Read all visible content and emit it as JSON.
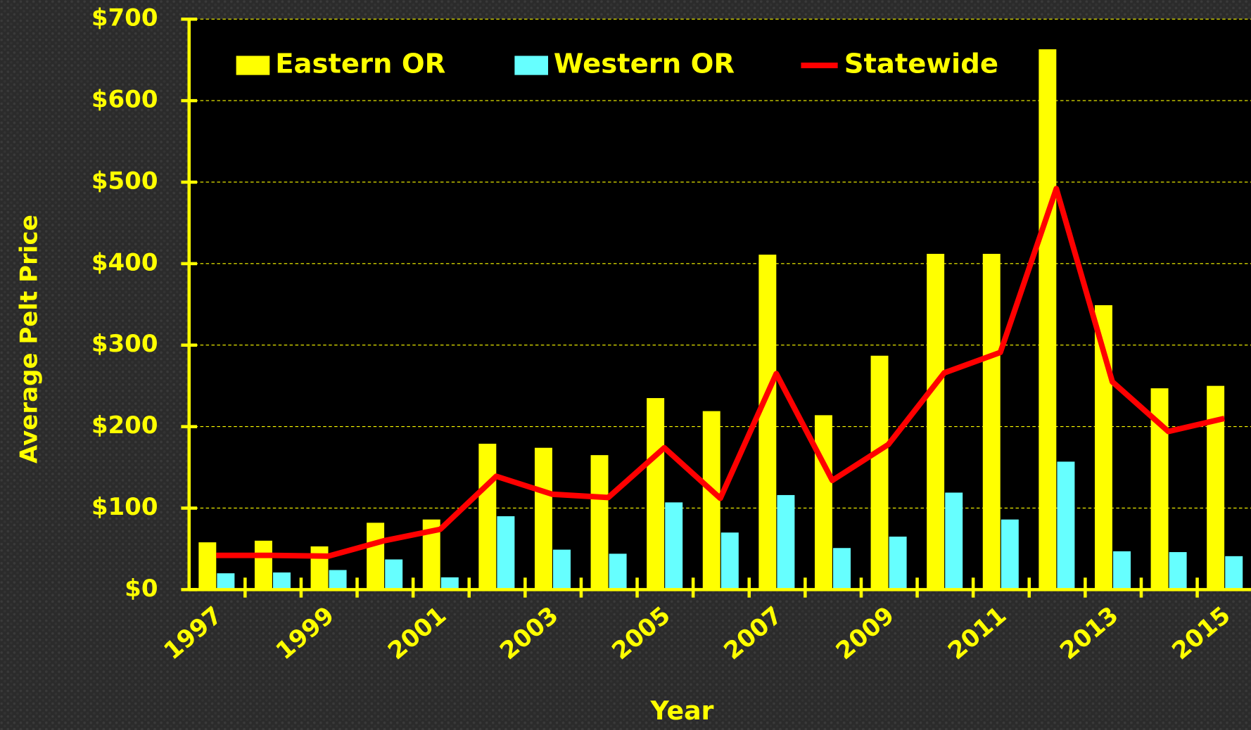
{
  "chart_data": {
    "type": "bar_line",
    "x_label": "Year",
    "y_label": "Average Pelt Price",
    "categories": [
      "1997",
      null,
      "1999",
      null,
      "2001",
      null,
      "2003",
      null,
      "2005",
      null,
      "2007",
      null,
      "2009",
      null,
      "2011",
      null,
      "2013",
      null,
      "2015"
    ],
    "series": [
      {
        "name": "Eastern OR",
        "type": "bar",
        "color": "#ffff00",
        "values": [
          58,
          60,
          53,
          82,
          86,
          179,
          174,
          165,
          235,
          219,
          411,
          214,
          287,
          412,
          412,
          663,
          349,
          247,
          250
        ]
      },
      {
        "name": "Western OR",
        "type": "bar",
        "color": "#66ffff",
        "values": [
          20,
          21,
          24,
          37,
          15,
          90,
          49,
          44,
          107,
          70,
          116,
          51,
          65,
          119,
          86,
          157,
          47,
          46,
          41
        ]
      },
      {
        "name": "Statewide",
        "type": "line",
        "color": "#ff0000",
        "values": [
          42,
          42,
          41,
          60,
          74,
          139,
          117,
          113,
          174,
          112,
          265,
          134,
          178,
          266,
          291,
          492,
          255,
          194,
          210
        ]
      }
    ],
    "ylim": [
      0,
      700
    ],
    "yticks": [
      {
        "value": 0,
        "label": "$0"
      },
      {
        "value": 100,
        "label": "$100"
      },
      {
        "value": 200,
        "label": "$200"
      },
      {
        "value": 300,
        "label": "$300"
      },
      {
        "value": 400,
        "label": "$400"
      },
      {
        "value": 500,
        "label": "$500"
      },
      {
        "value": 600,
        "label": "$600"
      },
      {
        "value": 700,
        "label": "$700"
      }
    ],
    "grid": true,
    "legend": "top"
  }
}
